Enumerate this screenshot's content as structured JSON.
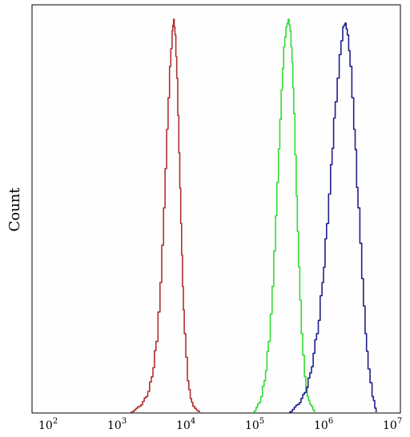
{
  "chart_data": {
    "type": "line",
    "title": "",
    "xlabel": "",
    "ylabel": "Count",
    "x_scale": "log",
    "xlim": [
      100,
      10000000
    ],
    "ylim": [
      0,
      100
    ],
    "grid": false,
    "legend": "none",
    "x_ticks": [
      {
        "base": "10",
        "exp": "2"
      },
      {
        "base": "10",
        "exp": "3"
      },
      {
        "base": "10",
        "exp": "4"
      },
      {
        "base": "10",
        "exp": "5"
      },
      {
        "base": "10",
        "exp": "6"
      },
      {
        "base": "10",
        "exp": "7"
      }
    ],
    "series": [
      {
        "color": "#b03030",
        "x": [
          1500,
          2000,
          2500,
          3000,
          3500,
          4000,
          4500,
          5000,
          5500,
          6000,
          6300,
          6600,
          7000,
          7500,
          8000,
          8500,
          9000,
          10000,
          11000,
          12000,
          13500,
          15000
        ],
        "y": [
          0,
          1.5,
          4,
          9,
          18,
          33,
          52,
          72,
          88,
          97,
          100,
          96,
          85,
          66,
          48,
          32,
          20,
          8,
          3.5,
          1.5,
          0.5,
          0
        ]
      },
      {
        "color": "#33dd33",
        "x": [
          90000,
          110000,
          130000,
          150000,
          170000,
          190000,
          210000,
          230000,
          250000,
          270000,
          290000,
          310000,
          330000,
          350000,
          380000,
          410000,
          450000,
          500000,
          550000,
          600000,
          700000
        ],
        "y": [
          0,
          2.5,
          8,
          18,
          32,
          50,
          67,
          82,
          93,
          98,
          100,
          97,
          89,
          76,
          55,
          37,
          20,
          9,
          4,
          2,
          0
        ]
      },
      {
        "color": "#20208a",
        "x": [
          300000,
          400000,
          500000,
          600000,
          750000,
          900000,
          1050000,
          1200000,
          1400000,
          1600000,
          1800000,
          1950000,
          2100000,
          2300000,
          2600000,
          3000000,
          3400000,
          3800000,
          4200000,
          4800000,
          5500000
        ],
        "y": [
          0,
          2,
          5,
          10,
          20,
          33,
          48,
          63,
          79,
          91,
          98,
          99,
          96,
          88,
          72,
          52,
          34,
          20,
          11,
          4,
          0
        ]
      }
    ]
  }
}
